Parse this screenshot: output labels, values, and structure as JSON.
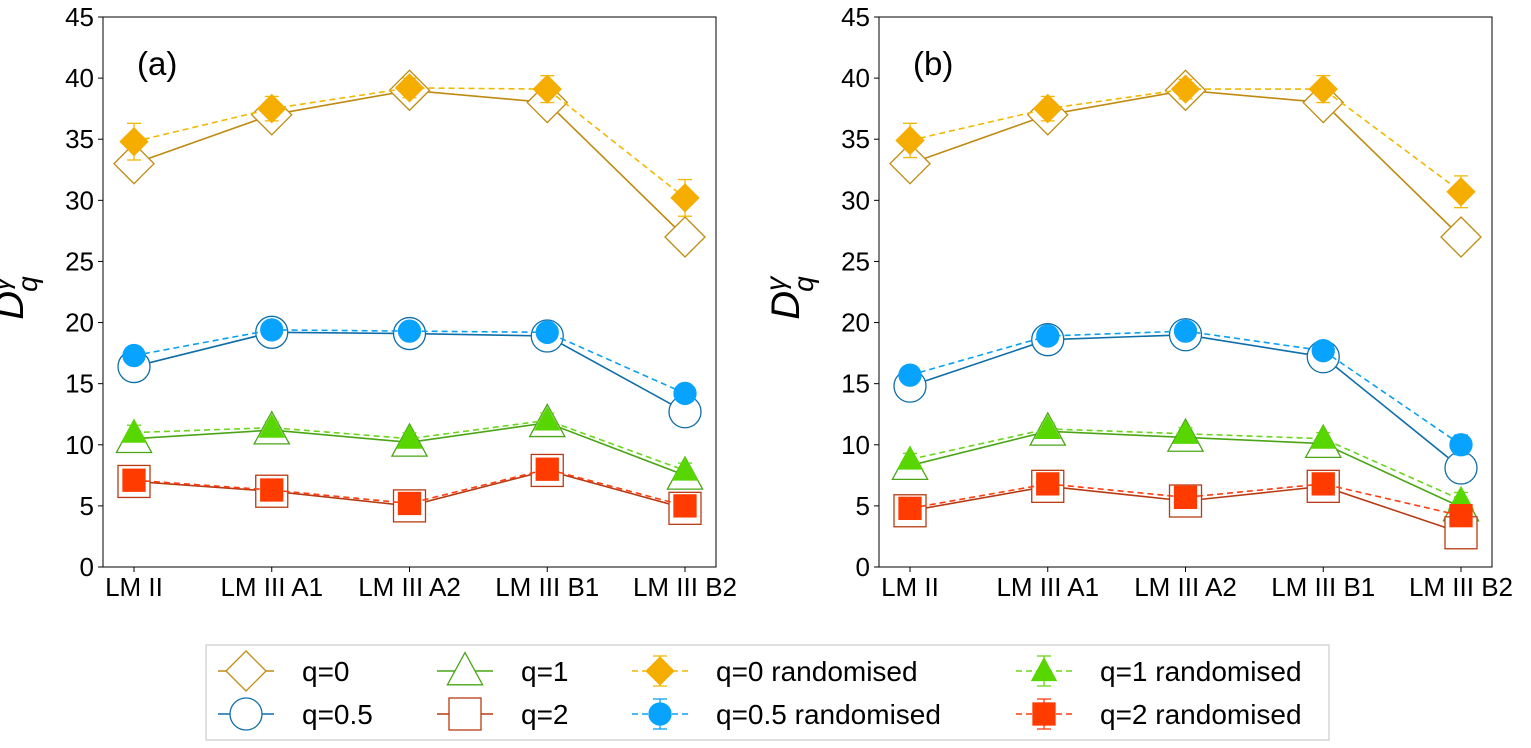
{
  "chart_data": [
    {
      "type": "line",
      "panel_label": "(a)",
      "ylabel": "D",
      "ylabel_sup": "γ",
      "ylabel_sub": "q",
      "ylim": [
        0,
        45
      ],
      "yticks": [
        0,
        5,
        10,
        15,
        20,
        25,
        30,
        35,
        40,
        45
      ],
      "categories": [
        "LM II",
        "LM III A1",
        "LM III A2",
        "LM III B1",
        "LM III B2"
      ],
      "series": [
        {
          "name": "q=0",
          "values": [
            33.0,
            37.0,
            39.0,
            38.0,
            27.0
          ]
        },
        {
          "name": "q=0.5",
          "values": [
            16.4,
            19.2,
            19.1,
            18.9,
            12.7
          ]
        },
        {
          "name": "q=1",
          "values": [
            10.5,
            11.2,
            10.2,
            11.8,
            7.5
          ]
        },
        {
          "name": "q=2",
          "values": [
            7.0,
            6.2,
            5.0,
            7.9,
            4.8
          ]
        },
        {
          "name": "q=0 randomised",
          "values": [
            34.8,
            37.5,
            39.2,
            39.1,
            30.2
          ],
          "errors": [
            1.5,
            1.0,
            0.8,
            1.1,
            1.5
          ]
        },
        {
          "name": "q=0.5 randomised",
          "values": [
            17.3,
            19.4,
            19.3,
            19.2,
            14.2
          ],
          "errors": [
            0.6,
            0.5,
            0.5,
            0.5,
            0.6
          ]
        },
        {
          "name": "q=1 randomised",
          "values": [
            11.0,
            11.4,
            10.5,
            12.0,
            7.9
          ],
          "errors": [
            0.6,
            0.5,
            0.5,
            0.6,
            0.6
          ]
        },
        {
          "name": "q=2 randomised",
          "values": [
            7.1,
            6.3,
            5.2,
            8.0,
            5.0
          ],
          "errors": [
            0.4,
            0.4,
            0.4,
            0.4,
            0.4
          ]
        }
      ]
    },
    {
      "type": "line",
      "panel_label": "(b)",
      "ylabel": "D",
      "ylabel_sup": "γ",
      "ylabel_sub": "q",
      "ylim": [
        0,
        45
      ],
      "yticks": [
        0,
        5,
        10,
        15,
        20,
        25,
        30,
        35,
        40,
        45
      ],
      "categories": [
        "LM II",
        "LM III A1",
        "LM III A2",
        "LM III B1",
        "LM III B2"
      ],
      "series": [
        {
          "name": "q=0",
          "values": [
            33.0,
            37.0,
            39.0,
            38.0,
            27.0
          ]
        },
        {
          "name": "q=0.5",
          "values": [
            14.8,
            18.6,
            19.0,
            17.2,
            8.1
          ]
        },
        {
          "name": "q=1",
          "values": [
            8.3,
            11.1,
            10.6,
            10.1,
            4.9
          ]
        },
        {
          "name": "q=2",
          "values": [
            4.6,
            6.6,
            5.4,
            6.6,
            2.8
          ]
        },
        {
          "name": "q=0 randomised",
          "values": [
            34.9,
            37.5,
            39.1,
            39.1,
            30.7
          ],
          "errors": [
            1.4,
            1.0,
            0.8,
            1.1,
            1.3
          ]
        },
        {
          "name": "q=0.5 randomised",
          "values": [
            15.7,
            18.9,
            19.3,
            17.7,
            10.0
          ],
          "errors": [
            0.5,
            0.5,
            0.5,
            0.5,
            0.8
          ]
        },
        {
          "name": "q=1 randomised",
          "values": [
            8.8,
            11.3,
            10.9,
            10.5,
            5.5
          ],
          "errors": [
            0.5,
            0.5,
            0.5,
            0.5,
            0.6
          ]
        },
        {
          "name": "q=2 randomised",
          "values": [
            4.8,
            6.8,
            5.7,
            6.8,
            4.2
          ],
          "errors": [
            0.4,
            0.4,
            0.4,
            0.4,
            0.4
          ]
        }
      ]
    }
  ],
  "styles": {
    "q=0": {
      "color": "#bf8a10",
      "fill": "#bf8a10",
      "marker": "diamond",
      "filled": false,
      "dashed": false
    },
    "q=0.5": {
      "color": "#0f6ea8",
      "fill": "#0f6ea8",
      "marker": "circle",
      "filled": false,
      "dashed": false
    },
    "q=1": {
      "color": "#4aa516",
      "fill": "#4aa516",
      "marker": "triangle",
      "filled": false,
      "dashed": false
    },
    "q=2": {
      "color": "#b83a12",
      "fill": "#b83a12",
      "marker": "square",
      "filled": false,
      "dashed": false
    },
    "q=0 randomised": {
      "color": "#f2b800",
      "fill": "#f5ad00",
      "marker": "diamond",
      "filled": true,
      "dashed": true
    },
    "q=0.5 randomised": {
      "color": "#0aa0f0",
      "fill": "#08a2ff",
      "marker": "circle",
      "filled": true,
      "dashed": true
    },
    "q=1 randomised": {
      "color": "#6ad61c",
      "fill": "#58d600",
      "marker": "triangle",
      "filled": true,
      "dashed": true
    },
    "q=2 randomised": {
      "color": "#ff3d10",
      "fill": "#ff3b00",
      "marker": "square",
      "filled": true,
      "dashed": true
    }
  },
  "legend": {
    "placement": "bottom-center",
    "entries": [
      "q=0",
      "q=0.5",
      "q=1",
      "q=2",
      "q=0 randomised",
      "q=0.5 randomised",
      "q=1 randomised",
      "q=2 randomised"
    ]
  }
}
